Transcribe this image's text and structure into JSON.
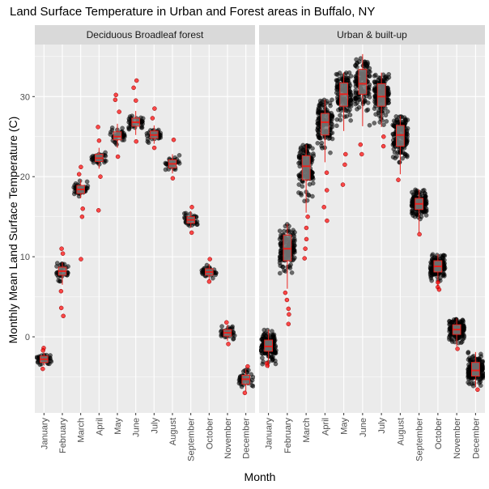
{
  "chart_data": {
    "type": "boxplot",
    "title": "Land Surface Temperature in Urban and Forest areas in Buffalo, NY",
    "xlabel": "Month",
    "ylabel": "Monthly Mean Land Surface Temperature (C)",
    "ylim": [
      -9.5,
      36.5
    ],
    "yticks": [
      0,
      10,
      20,
      30
    ],
    "grid": true,
    "months": [
      "January",
      "February",
      "March",
      "April",
      "May",
      "June",
      "July",
      "August",
      "September",
      "October",
      "November",
      "December"
    ],
    "panels": [
      {
        "name": "Deciduous Broadleaf forest",
        "boxes": [
          {
            "month": "January",
            "q1": -3.2,
            "median": -2.8,
            "q3": -2.4,
            "low": -3.6,
            "high": -2.0,
            "spread": 0.6
          },
          {
            "month": "February",
            "q1": 7.7,
            "median": 8.2,
            "q3": 8.7,
            "low": 6.5,
            "high": 9.3,
            "spread": 0.8
          },
          {
            "month": "March",
            "q1": 17.9,
            "median": 18.4,
            "q3": 18.9,
            "low": 17.3,
            "high": 19.6,
            "spread": 0.7
          },
          {
            "month": "April",
            "q1": 21.9,
            "median": 22.3,
            "q3": 22.8,
            "low": 21.0,
            "high": 23.6,
            "spread": 0.7
          },
          {
            "month": "May",
            "q1": 24.6,
            "median": 25.0,
            "q3": 25.6,
            "low": 23.6,
            "high": 26.6,
            "spread": 0.8
          },
          {
            "month": "June",
            "q1": 26.3,
            "median": 26.8,
            "q3": 27.3,
            "low": 25.2,
            "high": 28.2,
            "spread": 0.8
          },
          {
            "month": "July",
            "q1": 24.8,
            "median": 25.2,
            "q3": 25.7,
            "low": 24.1,
            "high": 26.4,
            "spread": 0.7
          },
          {
            "month": "August",
            "q1": 21.1,
            "median": 21.6,
            "q3": 22.1,
            "low": 20.4,
            "high": 22.8,
            "spread": 0.7
          },
          {
            "month": "September",
            "q1": 14.2,
            "median": 14.6,
            "q3": 15.0,
            "low": 13.6,
            "high": 15.7,
            "spread": 0.6
          },
          {
            "month": "October",
            "q1": 7.7,
            "median": 8.1,
            "q3": 8.5,
            "low": 7.1,
            "high": 9.1,
            "spread": 0.6
          },
          {
            "month": "November",
            "q1": 0.1,
            "median": 0.5,
            "q3": 0.9,
            "low": -0.5,
            "high": 1.5,
            "spread": 0.6
          },
          {
            "month": "December",
            "q1": -5.9,
            "median": -5.3,
            "q3": -4.8,
            "low": -6.8,
            "high": -4.0,
            "spread": 0.8
          }
        ],
        "outliers": [
          {
            "month": "January",
            "y": -1.4
          },
          {
            "month": "January",
            "y": -1.7
          },
          {
            "month": "January",
            "y": -4.0
          },
          {
            "month": "February",
            "y": 11.0
          },
          {
            "month": "February",
            "y": 10.4
          },
          {
            "month": "February",
            "y": 5.7
          },
          {
            "month": "February",
            "y": 3.6
          },
          {
            "month": "February",
            "y": 2.6
          },
          {
            "month": "March",
            "y": 21.2
          },
          {
            "month": "March",
            "y": 20.3
          },
          {
            "month": "March",
            "y": 16.0
          },
          {
            "month": "March",
            "y": 15.0
          },
          {
            "month": "March",
            "y": 9.7
          },
          {
            "month": "April",
            "y": 26.2
          },
          {
            "month": "April",
            "y": 24.5
          },
          {
            "month": "April",
            "y": 20.0
          },
          {
            "month": "April",
            "y": 15.8
          },
          {
            "month": "May",
            "y": 30.2
          },
          {
            "month": "May",
            "y": 29.6
          },
          {
            "month": "May",
            "y": 28.1
          },
          {
            "month": "May",
            "y": 22.5
          },
          {
            "month": "June",
            "y": 32.0
          },
          {
            "month": "June",
            "y": 31.1
          },
          {
            "month": "June",
            "y": 29.5
          },
          {
            "month": "June",
            "y": 24.4
          },
          {
            "month": "July",
            "y": 28.5
          },
          {
            "month": "July",
            "y": 27.3
          },
          {
            "month": "July",
            "y": 23.6
          },
          {
            "month": "August",
            "y": 24.6
          },
          {
            "month": "August",
            "y": 19.8
          },
          {
            "month": "September",
            "y": 16.2
          },
          {
            "month": "September",
            "y": 13.0
          },
          {
            "month": "October",
            "y": 9.7
          },
          {
            "month": "October",
            "y": 6.9
          },
          {
            "month": "November",
            "y": 1.8
          },
          {
            "month": "November",
            "y": -0.9
          },
          {
            "month": "December",
            "y": -3.7
          },
          {
            "month": "December",
            "y": -7.0
          }
        ]
      },
      {
        "name": "Urban & built-up",
        "boxes": [
          {
            "month": "January",
            "q1": -1.8,
            "median": -1.2,
            "q3": -0.4,
            "low": -3.9,
            "high": 0.9,
            "spread": 1.4
          },
          {
            "month": "February",
            "q1": 9.5,
            "median": 11.0,
            "q3": 12.7,
            "low": 6.0,
            "high": 14.1,
            "spread": 2.2
          },
          {
            "month": "March",
            "q1": 19.6,
            "median": 21.3,
            "q3": 22.6,
            "low": 15.5,
            "high": 24.0,
            "spread": 2.3
          },
          {
            "month": "April",
            "q1": 25.2,
            "median": 26.8,
            "q3": 27.9,
            "low": 21.8,
            "high": 29.6,
            "spread": 2.2
          },
          {
            "month": "May",
            "q1": 28.8,
            "median": 30.3,
            "q3": 31.7,
            "low": 25.7,
            "high": 33.0,
            "spread": 2.2
          },
          {
            "month": "June",
            "q1": 30.3,
            "median": 31.6,
            "q3": 33.4,
            "low": 26.3,
            "high": 35.3,
            "spread": 2.4
          },
          {
            "month": "July",
            "q1": 28.8,
            "median": 30.0,
            "q3": 31.6,
            "low": 26.2,
            "high": 33.0,
            "spread": 2.2
          },
          {
            "month": "August",
            "q1": 23.8,
            "median": 25.2,
            "q3": 26.4,
            "low": 20.3,
            "high": 27.6,
            "spread": 2.0
          },
          {
            "month": "September",
            "q1": 15.9,
            "median": 16.6,
            "q3": 17.3,
            "low": 13.0,
            "high": 18.4,
            "spread": 1.4
          },
          {
            "month": "October",
            "q1": 8.1,
            "median": 8.8,
            "q3": 9.5,
            "low": 6.0,
            "high": 10.3,
            "spread": 1.2
          },
          {
            "month": "November",
            "q1": 0.3,
            "median": 0.9,
            "q3": 1.5,
            "low": -1.2,
            "high": 2.3,
            "spread": 1.1
          },
          {
            "month": "December",
            "q1": -4.9,
            "median": -4.2,
            "q3": -3.2,
            "low": -6.3,
            "high": -1.9,
            "spread": 1.4
          }
        ],
        "outliers": [
          {
            "month": "January",
            "y": -3.6
          },
          {
            "month": "January",
            "y": -3.3
          },
          {
            "month": "February",
            "y": 5.5
          },
          {
            "month": "February",
            "y": 4.6
          },
          {
            "month": "February",
            "y": 3.5
          },
          {
            "month": "February",
            "y": 2.8
          },
          {
            "month": "February",
            "y": 1.6
          },
          {
            "month": "March",
            "y": 15.0
          },
          {
            "month": "March",
            "y": 13.6
          },
          {
            "month": "March",
            "y": 12.2
          },
          {
            "month": "March",
            "y": 11.0
          },
          {
            "month": "March",
            "y": 9.8
          },
          {
            "month": "April",
            "y": 20.5
          },
          {
            "month": "April",
            "y": 18.3
          },
          {
            "month": "April",
            "y": 16.2
          },
          {
            "month": "April",
            "y": 14.5
          },
          {
            "month": "May",
            "y": 22.8
          },
          {
            "month": "May",
            "y": 21.5
          },
          {
            "month": "May",
            "y": 19.0
          },
          {
            "month": "June",
            "y": 24.0
          },
          {
            "month": "June",
            "y": 22.8
          },
          {
            "month": "July",
            "y": 25.0
          },
          {
            "month": "July",
            "y": 23.8
          },
          {
            "month": "August",
            "y": 19.6
          },
          {
            "month": "September",
            "y": 12.8
          },
          {
            "month": "October",
            "y": 6.8
          },
          {
            "month": "October",
            "y": 6.2
          },
          {
            "month": "October",
            "y": 5.9
          },
          {
            "month": "November",
            "y": -1.5
          },
          {
            "month": "December",
            "y": -6.6
          }
        ]
      }
    ],
    "colors": {
      "panel_background": "#ebebeb",
      "grid": "#ffffff",
      "strip_background": "#d9d9d9",
      "point": "#000000",
      "box_fill": "#808080",
      "box_line": "#e8231e",
      "outlier": "#ff0000"
    }
  }
}
